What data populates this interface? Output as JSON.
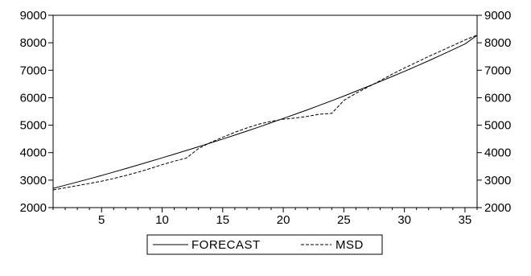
{
  "chart_data": {
    "type": "line",
    "x": [
      1,
      2,
      3,
      4,
      5,
      6,
      7,
      8,
      9,
      10,
      11,
      12,
      13,
      14,
      15,
      16,
      17,
      18,
      19,
      20,
      21,
      22,
      23,
      24,
      25,
      26,
      27,
      28,
      29,
      30,
      31,
      32,
      33,
      34,
      35,
      36
    ],
    "xlim": [
      1,
      36
    ],
    "ylim": [
      2000,
      9000
    ],
    "xticks": [
      5,
      10,
      15,
      20,
      25,
      30,
      35
    ],
    "yticks": [
      2000,
      3000,
      4000,
      5000,
      6000,
      7000,
      8000,
      9000
    ],
    "right_axis": true,
    "grid": false,
    "legend_position": "bottom-center",
    "series": [
      {
        "name": "FORECAST",
        "style": "solid",
        "color": "#000000",
        "values": [
          2700,
          2815,
          2930,
          3050,
          3170,
          3295,
          3420,
          3550,
          3680,
          3810,
          3945,
          4080,
          4215,
          4355,
          4495,
          4640,
          4785,
          4935,
          5090,
          5245,
          5400,
          5560,
          5725,
          5890,
          6060,
          6235,
          6410,
          6590,
          6775,
          6960,
          7150,
          7345,
          7545,
          7750,
          7955,
          8270
        ]
      },
      {
        "name": "MSD",
        "style": "dashed",
        "color": "#000000",
        "values": [
          2640,
          2720,
          2800,
          2880,
          2960,
          3060,
          3170,
          3290,
          3420,
          3560,
          3690,
          3800,
          4150,
          4370,
          4560,
          4740,
          4900,
          5040,
          5140,
          5220,
          5260,
          5320,
          5400,
          5430,
          5900,
          6160,
          6390,
          6620,
          6860,
          7080,
          7290,
          7500,
          7700,
          7900,
          8100,
          8280
        ]
      }
    ]
  }
}
